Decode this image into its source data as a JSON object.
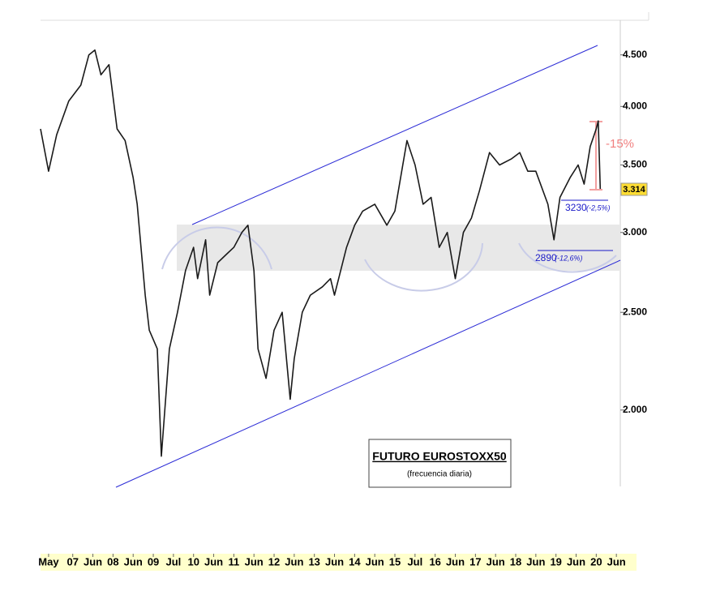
{
  "chart_data": {
    "type": "line",
    "title": "FUTURO EUROSTOXX50",
    "subtitle": "(frecuencia diaria)",
    "log_scale": true,
    "grid": false,
    "x": [
      2006.2,
      2006.4,
      2006.6,
      2006.9,
      2007.2,
      2007.4,
      2007.55,
      2007.7,
      2007.9,
      2008.1,
      2008.3,
      2008.5,
      2008.6,
      2008.8,
      2008.9,
      2009.1,
      2009.2,
      2009.4,
      2009.6,
      2009.8,
      2010.0,
      2010.1,
      2010.3,
      2010.4,
      2010.6,
      2010.8,
      2011.0,
      2011.2,
      2011.35,
      2011.5,
      2011.6,
      2011.8,
      2012.0,
      2012.2,
      2012.4,
      2012.5,
      2012.7,
      2012.9,
      2013.2,
      2013.4,
      2013.5,
      2013.8,
      2014.0,
      2014.2,
      2014.5,
      2014.8,
      2015.0,
      2015.3,
      2015.5,
      2015.7,
      2015.9,
      2016.1,
      2016.3,
      2016.5,
      2016.7,
      2016.9,
      2017.1,
      2017.35,
      2017.6,
      2017.9,
      2018.1,
      2018.3,
      2018.5,
      2018.8,
      2018.95,
      2019.1,
      2019.35,
      2019.55,
      2019.7,
      2019.85,
      2020.0,
      2020.05,
      2020.1
    ],
    "series": [
      {
        "name": "EUROSTOXX50",
        "color": "#1a1a1a",
        "values": [
          3800,
          3450,
          3750,
          4050,
          4200,
          4500,
          4550,
          4300,
          4400,
          3800,
          3700,
          3400,
          3200,
          2600,
          2400,
          2300,
          1800,
          2300,
          2500,
          2750,
          2900,
          2700,
          2950,
          2600,
          2800,
          2850,
          2900,
          3000,
          3050,
          2750,
          2300,
          2150,
          2400,
          2500,
          2050,
          2250,
          2500,
          2600,
          2650,
          2700,
          2600,
          2900,
          3050,
          3150,
          3200,
          3050,
          3150,
          3700,
          3500,
          3200,
          3250,
          2900,
          3000,
          2700,
          3000,
          3100,
          3300,
          3600,
          3500,
          3550,
          3600,
          3450,
          3450,
          3200,
          2950,
          3250,
          3400,
          3500,
          3350,
          3650,
          3800,
          3870,
          3314
        ]
      }
    ],
    "xlim": [
      2006.2,
      2021.0
    ],
    "xticks": [
      {
        "value": 2006.4,
        "label": "May"
      },
      {
        "value": 2007,
        "label": "07"
      },
      {
        "value": 2007.5,
        "label": "Jun"
      },
      {
        "value": 2008,
        "label": "08"
      },
      {
        "value": 2008.5,
        "label": "Jun"
      },
      {
        "value": 2009,
        "label": "09"
      },
      {
        "value": 2009.5,
        "label": "Jul"
      },
      {
        "value": 2010,
        "label": "10"
      },
      {
        "value": 2010.5,
        "label": "Jun"
      },
      {
        "value": 2011,
        "label": "11"
      },
      {
        "value": 2011.5,
        "label": "Jun"
      },
      {
        "value": 2012,
        "label": "12"
      },
      {
        "value": 2012.5,
        "label": "Jun"
      },
      {
        "value": 2013,
        "label": "13"
      },
      {
        "value": 2013.5,
        "label": "Jun"
      },
      {
        "value": 2014,
        "label": "14"
      },
      {
        "value": 2014.5,
        "label": "Jun"
      },
      {
        "value": 2015,
        "label": "15"
      },
      {
        "value": 2015.5,
        "label": "Jul"
      },
      {
        "value": 2016,
        "label": "16"
      },
      {
        "value": 2016.5,
        "label": "Jun"
      },
      {
        "value": 2017,
        "label": "17"
      },
      {
        "value": 2017.5,
        "label": "Jun"
      },
      {
        "value": 2018,
        "label": "18"
      },
      {
        "value": 2018.5,
        "label": "Jun"
      },
      {
        "value": 2019,
        "label": "19"
      },
      {
        "value": 2019.5,
        "label": "Jun"
      },
      {
        "value": 2020,
        "label": "20"
      },
      {
        "value": 2020.5,
        "label": "Jun"
      }
    ],
    "ylim": [
      1680,
      4870
    ],
    "yticks": [
      {
        "value": 2000,
        "label": "2.000"
      },
      {
        "value": 2500,
        "label": "2.500"
      },
      {
        "value": 3000,
        "label": "3.000"
      },
      {
        "value": 3500,
        "label": "3.500"
      },
      {
        "value": 4000,
        "label": "4.000"
      },
      {
        "value": 4500,
        "label": "4.500"
      }
    ],
    "annotations": [
      "-15%",
      "3.314",
      "3230",
      "(-2,5%)",
      "2890",
      "(-12,6%)"
    ]
  }
}
